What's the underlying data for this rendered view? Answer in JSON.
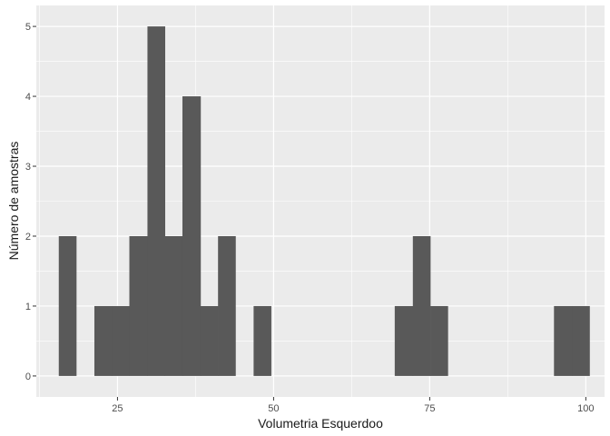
{
  "chart_data": {
    "type": "bar",
    "subtype": "histogram",
    "xlabel": "Volumetria Esquerdoo",
    "ylabel": "Número de amostras",
    "xlim": [
      12,
      103
    ],
    "ylim": [
      -0.3,
      5.3
    ],
    "x_ticks": [
      25,
      50,
      75,
      100
    ],
    "x_tick_labels": [
      "25",
      "50",
      "75",
      "100"
    ],
    "y_ticks": [
      0,
      1,
      2,
      3,
      4,
      5
    ],
    "y_tick_labels": [
      "0",
      "1",
      "2",
      "3",
      "4",
      "5"
    ],
    "bin_width": 2.83,
    "bins": [
      {
        "start": 15.6,
        "end": 18.4,
        "count": 2
      },
      {
        "start": 18.4,
        "end": 21.3,
        "count": 0
      },
      {
        "start": 21.3,
        "end": 24.1,
        "count": 1
      },
      {
        "start": 24.1,
        "end": 26.9,
        "count": 1
      },
      {
        "start": 26.9,
        "end": 29.8,
        "count": 2
      },
      {
        "start": 29.8,
        "end": 32.6,
        "count": 5
      },
      {
        "start": 32.6,
        "end": 35.4,
        "count": 2
      },
      {
        "start": 35.4,
        "end": 38.3,
        "count": 4
      },
      {
        "start": 38.3,
        "end": 41.1,
        "count": 1
      },
      {
        "start": 41.1,
        "end": 43.9,
        "count": 2
      },
      {
        "start": 43.9,
        "end": 46.8,
        "count": 0
      },
      {
        "start": 46.8,
        "end": 49.6,
        "count": 1
      },
      {
        "start": 49.6,
        "end": 52.4,
        "count": 0
      },
      {
        "start": 52.4,
        "end": 55.3,
        "count": 0
      },
      {
        "start": 55.3,
        "end": 58.1,
        "count": 0
      },
      {
        "start": 58.1,
        "end": 60.9,
        "count": 0
      },
      {
        "start": 60.9,
        "end": 63.8,
        "count": 0
      },
      {
        "start": 63.8,
        "end": 66.6,
        "count": 0
      },
      {
        "start": 66.6,
        "end": 69.4,
        "count": 0
      },
      {
        "start": 69.4,
        "end": 72.3,
        "count": 1
      },
      {
        "start": 72.3,
        "end": 75.1,
        "count": 2
      },
      {
        "start": 75.1,
        "end": 77.9,
        "count": 1
      },
      {
        "start": 77.9,
        "end": 80.8,
        "count": 0
      },
      {
        "start": 80.8,
        "end": 83.6,
        "count": 0
      },
      {
        "start": 83.6,
        "end": 86.4,
        "count": 0
      },
      {
        "start": 86.4,
        "end": 89.3,
        "count": 0
      },
      {
        "start": 89.3,
        "end": 92.1,
        "count": 0
      },
      {
        "start": 92.1,
        "end": 94.9,
        "count": 0
      },
      {
        "start": 94.9,
        "end": 97.8,
        "count": 1
      },
      {
        "start": 97.8,
        "end": 100.6,
        "count": 1
      }
    ],
    "grid": true,
    "colors": {
      "panel_background": "#EBEBEB",
      "grid_line": "#FFFFFF",
      "bar_fill": "#595959",
      "tick_mark": "#333333"
    }
  }
}
